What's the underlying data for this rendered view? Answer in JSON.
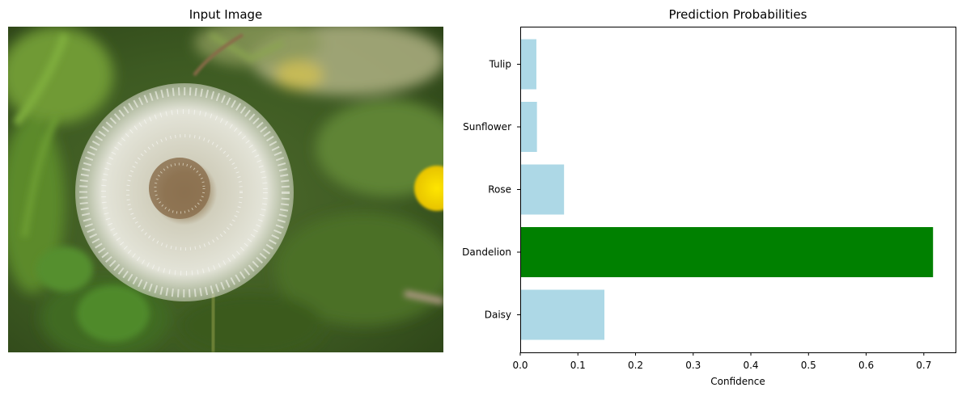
{
  "left_panel": {
    "title": "Input Image",
    "image_subject": "dandelion seed head"
  },
  "chart_data": {
    "type": "bar",
    "orientation": "horizontal",
    "title": "Prediction Probabilities",
    "xlabel": "Confidence",
    "ylabel": "",
    "categories": [
      "Daisy",
      "Dandelion",
      "Rose",
      "Sunflower",
      "Tulip"
    ],
    "values": [
      0.146,
      0.716,
      0.076,
      0.029,
      0.028
    ],
    "xlim": [
      0,
      0.755
    ],
    "xticks": [
      0.0,
      0.1,
      0.2,
      0.3,
      0.4,
      0.5,
      0.6,
      0.7
    ],
    "grid": false,
    "legend": "none",
    "colors": {
      "default": "#add8e6",
      "highlight": "#008000"
    },
    "highlight_category": "Dandelion"
  }
}
